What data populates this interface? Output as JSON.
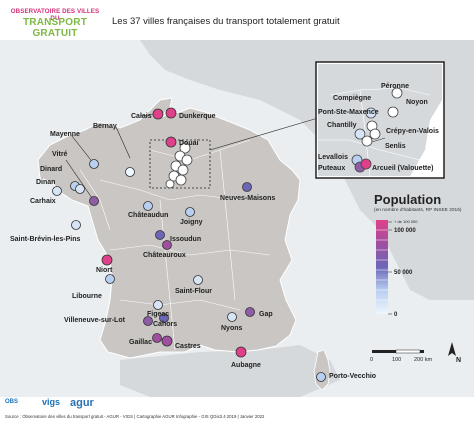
{
  "header": {
    "logo_line1": "OBSERVATOIRE DES VILLES DU",
    "logo_line2": "TRANSPORT GRATUIT",
    "title": "Les 37 villes françaises du transport totalement gratuit"
  },
  "cities": [
    {
      "name": "Calais"
    },
    {
      "name": "Dunkerque"
    },
    {
      "name": "Douai"
    },
    {
      "name": "Mayenne"
    },
    {
      "name": "Bernay"
    },
    {
      "name": "Vitré"
    },
    {
      "name": "Dinard"
    },
    {
      "name": "Dinan"
    },
    {
      "name": "Carhaix"
    },
    {
      "name": "Châteaudun"
    },
    {
      "name": "Joigny"
    },
    {
      "name": "Neuves-Maisons"
    },
    {
      "name": "Saint-Brévin-les-Pins"
    },
    {
      "name": "Issoudun"
    },
    {
      "name": "Châteauroux"
    },
    {
      "name": "Niort"
    },
    {
      "name": "Libourne"
    },
    {
      "name": "Saint-Flour"
    },
    {
      "name": "Figeac"
    },
    {
      "name": "Villeneuve-sur-Lot"
    },
    {
      "name": "Cahors"
    },
    {
      "name": "Gaillac"
    },
    {
      "name": "Castres"
    },
    {
      "name": "Gap"
    },
    {
      "name": "Nyons"
    },
    {
      "name": "Aubagne"
    },
    {
      "name": "Porto-Vecchio"
    }
  ],
  "inset": {
    "cities": [
      {
        "name": "Péronne"
      },
      {
        "name": "Compiègne"
      },
      {
        "name": "Noyon"
      },
      {
        "name": "Pont-Ste-Maxence"
      },
      {
        "name": "Chantilly"
      },
      {
        "name": "Crépy-en-Valois"
      },
      {
        "name": "Senlis"
      },
      {
        "name": "Levallois"
      },
      {
        "name": "Puteaux"
      },
      {
        "name": "Arcueil (Valouette)"
      }
    ]
  },
  "legend": {
    "title": "Population",
    "subtitle": "(en nombre d'habitants, RP INSEE 2016)",
    "ticks": [
      "+ de 100 000",
      "100 000",
      "50 000",
      "0"
    ],
    "colors": {
      "low": "#eef6ff",
      "mid_low": "#b8cff0",
      "mid": "#6c66b8",
      "mid_high": "#a04fa0",
      "high": "#e0408a"
    }
  },
  "scale": {
    "labels": [
      "0",
      "100",
      "200 km"
    ]
  },
  "north": "N",
  "footer": {
    "logos": [
      "OBSERVATOIRE",
      "vigs",
      "agur"
    ],
    "source": "Source : Observatoire des villes du transport gratuit - AGUR - VIGS | Cartographie AGUR Infographie - GIS QGis3.4 2019 | Janvier 2022"
  }
}
